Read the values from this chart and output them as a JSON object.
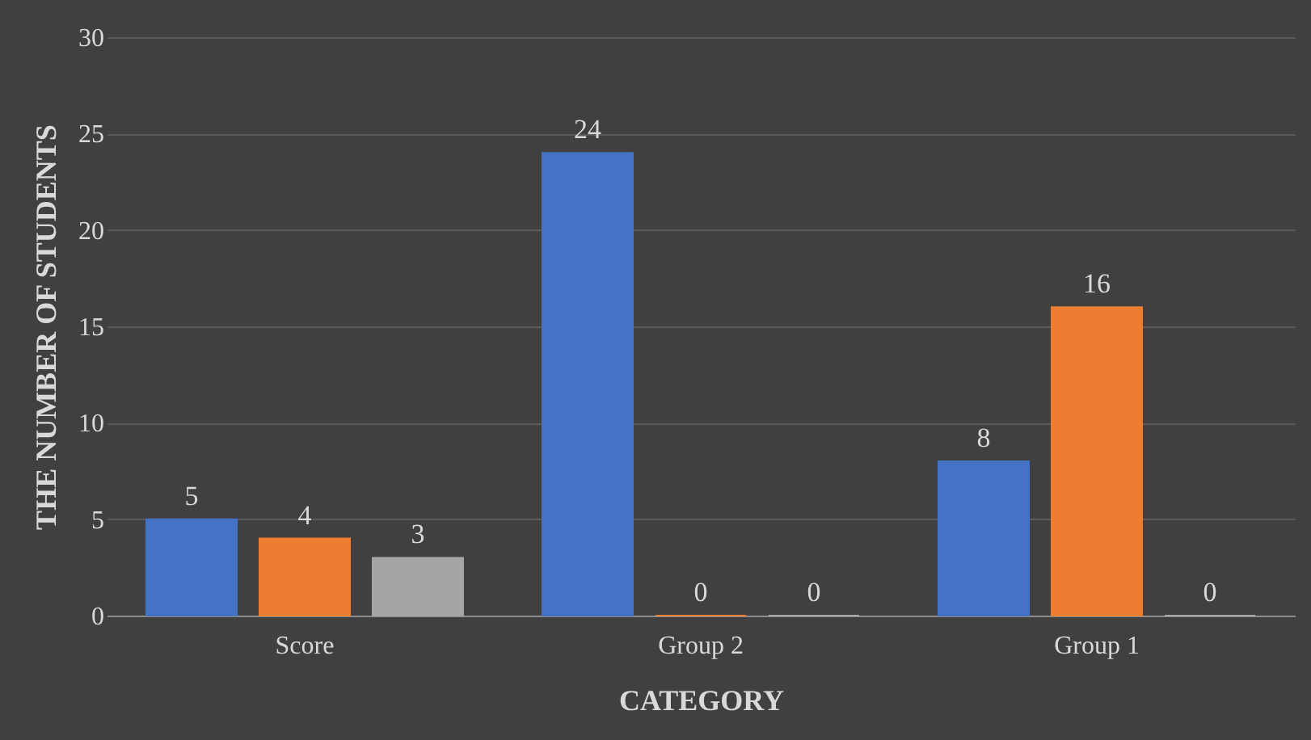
{
  "chart_data": {
    "type": "bar",
    "xlabel": "CATEGORY",
    "ylabel": "THE NUMBER OF STUDENTS",
    "categories": [
      "Score",
      "Group 2",
      "Group 1"
    ],
    "series": [
      {
        "color": "#4472c4",
        "values": [
          5,
          24,
          8
        ]
      },
      {
        "color": "#ed7d31",
        "values": [
          4,
          0,
          16
        ]
      },
      {
        "color": "#a5a5a5",
        "values": [
          3,
          0,
          0
        ]
      }
    ],
    "ylim": [
      0,
      30
    ],
    "yticks": [
      0,
      5,
      10,
      15,
      20,
      25,
      30
    ],
    "grid": "y",
    "data_labels": true,
    "legend": false
  }
}
